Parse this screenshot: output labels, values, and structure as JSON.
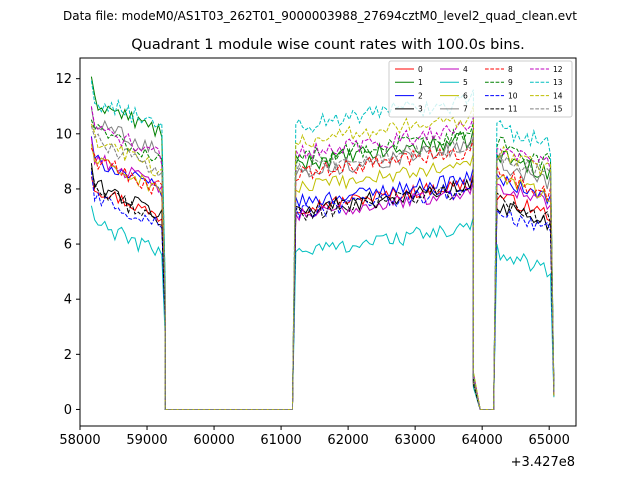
{
  "suptitle": "Data file: modeM0/AS1T03_262T01_9000003988_27694cztM0_level2_quad_clean.evt",
  "chart_data": {
    "type": "line",
    "title": "Quadrant 1 module wise count rates with 100.0s bins.",
    "xlabel": "",
    "ylabel": "",
    "x_offset_label": "+3.427e8",
    "xlim": [
      58000,
      65400
    ],
    "ylim": [
      -0.6,
      12.75
    ],
    "xticks": [
      58000,
      59000,
      60000,
      61000,
      62000,
      63000,
      64000,
      65000
    ],
    "xtick_labels": [
      "58000",
      "59000",
      "60000",
      "61000",
      "62000",
      "63000",
      "64000",
      "65000"
    ],
    "yticks": [
      0,
      2,
      4,
      6,
      8,
      10,
      12
    ],
    "ytick_labels": [
      "0",
      "2",
      "4",
      "6",
      "8",
      "10",
      "12"
    ],
    "legend_position": "upper right",
    "legend_columns": 4,
    "grid": false,
    "segments": [
      {
        "start": 58170,
        "end": 59270,
        "step": 50,
        "drop_ratio": 0.45
      },
      {
        "start": 59270,
        "end": 61170,
        "step": 100,
        "zero": true
      },
      {
        "start": 61170,
        "end": 63870,
        "step": 50,
        "drop_ratio": 0.0
      },
      {
        "start": 63870,
        "end": 64170,
        "step": 100,
        "special": [
          0.13,
          0.0,
          0.0,
          0.0
        ]
      },
      {
        "start": 64170,
        "end": 65070,
        "step": 50,
        "drop_ratio": 0.04
      }
    ],
    "series": [
      {
        "name": "0",
        "color": "#ff0000",
        "dash": "solid",
        "levels": [
          7.3,
          7.6,
          7.8
        ],
        "noise": 0.25
      },
      {
        "name": "1",
        "color": "#008000",
        "dash": "solid",
        "levels": [
          10.4,
          9.2,
          9.3
        ],
        "noise": 0.3
      },
      {
        "name": "2",
        "color": "#0000ff",
        "dash": "solid",
        "levels": [
          8.3,
          7.8,
          8.4
        ],
        "noise": 0.25
      },
      {
        "name": "3",
        "color": "#000000",
        "dash": "solid",
        "levels": [
          7.4,
          7.5,
          7.5
        ],
        "noise": 0.3
      },
      {
        "name": "4",
        "color": "#bf00bf",
        "dash": "solid",
        "levels": [
          8.4,
          7.3,
          8.2
        ],
        "noise": 0.25
      },
      {
        "name": "5",
        "color": "#00bfbf",
        "dash": "solid",
        "levels": [
          6.0,
          6.0,
          5.8
        ],
        "noise": 0.3
      },
      {
        "name": "6",
        "color": "#bfbf00",
        "dash": "solid",
        "levels": [
          8.3,
          8.3,
          8.5
        ],
        "noise": 0.25
      },
      {
        "name": "7",
        "color": "#808080",
        "dash": "solid",
        "levels": [
          9.7,
          8.9,
          9.0
        ],
        "noise": 0.3
      },
      {
        "name": "8",
        "color": "#ff0000",
        "dash": "dashed",
        "levels": [
          8.3,
          8.8,
          8.6
        ],
        "noise": 0.3
      },
      {
        "name": "9",
        "color": "#008000",
        "dash": "dashed",
        "levels": [
          9.4,
          9.4,
          9.7
        ],
        "noise": 0.3
      },
      {
        "name": "10",
        "color": "#0000ff",
        "dash": "dashed",
        "levels": [
          7.0,
          7.4,
          7.2
        ],
        "noise": 0.3
      },
      {
        "name": "11",
        "color": "#000000",
        "dash": "dashed",
        "levels": [
          7.2,
          7.4,
          7.6
        ],
        "noise": 0.3
      },
      {
        "name": "12",
        "color": "#bf00bf",
        "dash": "dashed",
        "levels": [
          9.5,
          9.6,
          9.6
        ],
        "noise": 0.3
      },
      {
        "name": "13",
        "color": "#00bfbf",
        "dash": "dashed",
        "levels": [
          10.5,
          10.6,
          10.3
        ],
        "noise": 0.35
      },
      {
        "name": "14",
        "color": "#bfbf00",
        "dash": "dashed",
        "levels": [
          9.0,
          10.0,
          9.4
        ],
        "noise": 0.3
      },
      {
        "name": "15",
        "color": "#808080",
        "dash": "dashed",
        "levels": [
          9.0,
          9.0,
          9.2
        ],
        "noise": 0.3
      }
    ]
  }
}
